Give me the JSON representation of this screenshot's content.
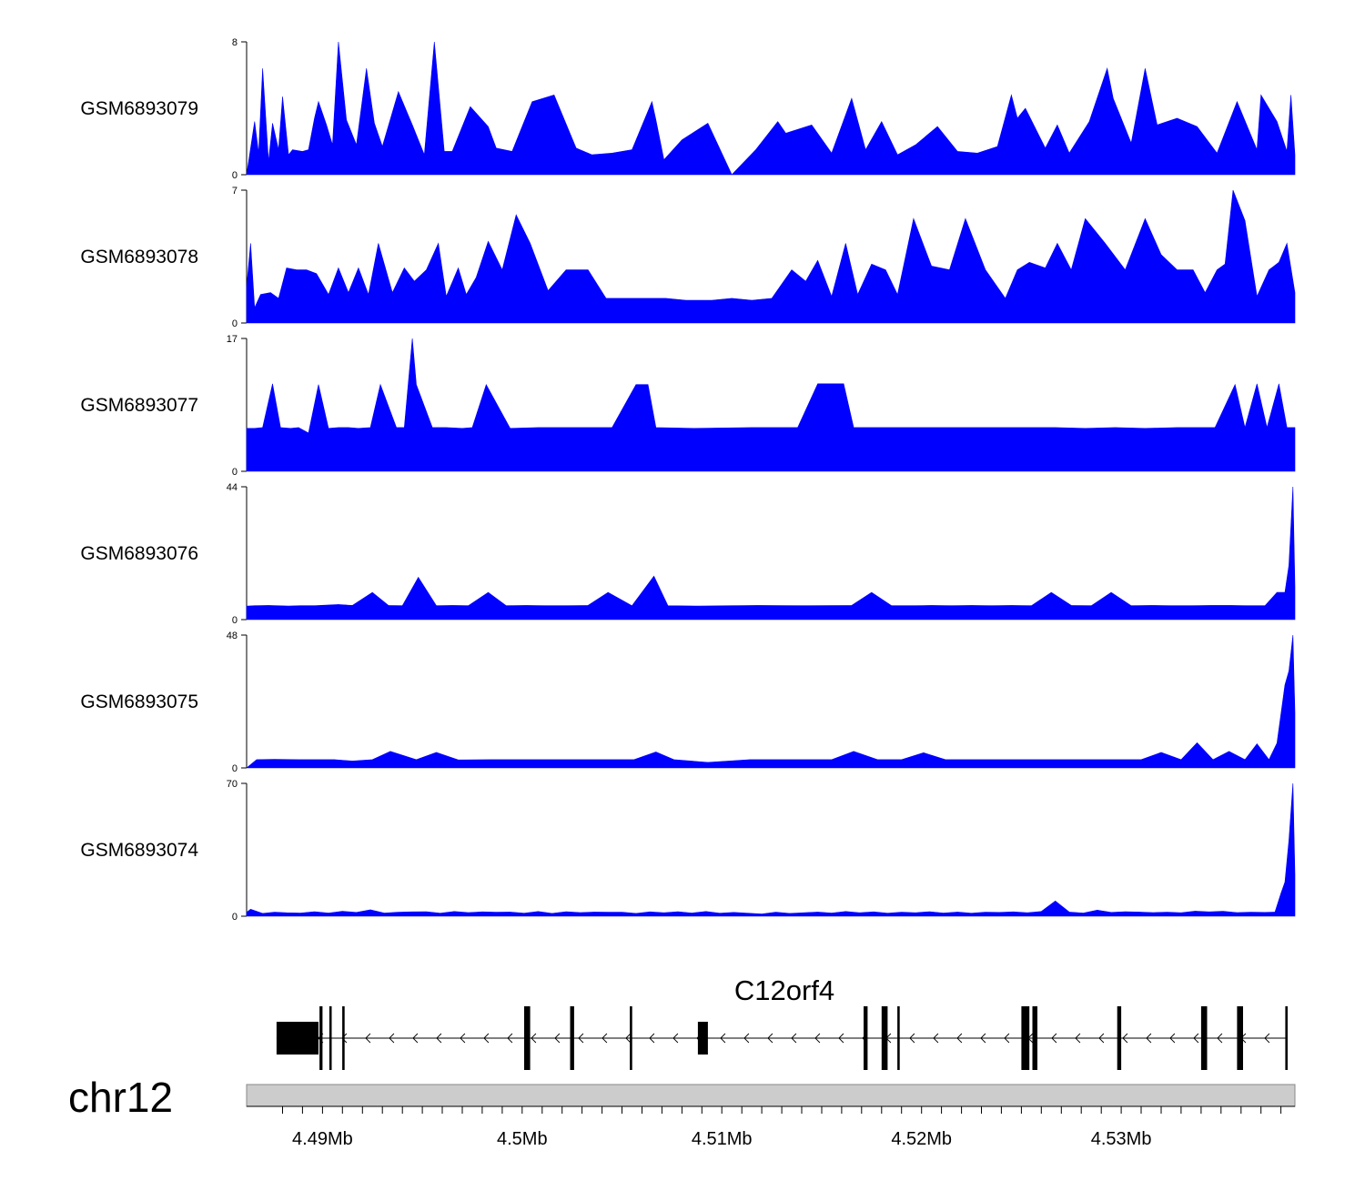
{
  "chart_data": {
    "type": "area",
    "title": "",
    "xlabel": "",
    "ylabel": "",
    "chromosome": "chr12",
    "xlim": [
      4.4862,
      4.5387
    ],
    "x_unit": "Mb",
    "x_ticks": [
      4.488,
      4.489,
      4.49,
      4.491,
      4.492,
      4.493,
      4.494,
      4.495,
      4.496,
      4.497,
      4.498,
      4.499,
      4.5,
      4.501,
      4.502,
      4.503,
      4.504,
      4.505,
      4.506,
      4.507,
      4.508,
      4.509,
      4.51,
      4.511,
      4.512,
      4.513,
      4.514,
      4.515,
      4.516,
      4.517,
      4.518,
      4.519,
      4.52,
      4.521,
      4.522,
      4.523,
      4.524,
      4.525,
      4.526,
      4.527,
      4.528,
      4.529,
      4.53,
      4.531,
      4.532,
      4.533,
      4.534,
      4.535,
      4.536,
      4.537,
      4.538
    ],
    "x_tick_labels": [
      {
        "value": 4.49,
        "label": "4.49Mb"
      },
      {
        "value": 4.5,
        "label": "4.5Mb"
      },
      {
        "value": 4.51,
        "label": "4.51Mb"
      },
      {
        "value": 4.52,
        "label": "4.52Mb"
      },
      {
        "value": 4.53,
        "label": "4.53Mb"
      }
    ],
    "fill_color": "#0000ff",
    "series": [
      {
        "name": "GSM6893079",
        "ylim": [
          0,
          8
        ],
        "y_tick_labels": [
          "0",
          "8"
        ],
        "x": [
          4.4862,
          4.4866,
          4.4868,
          4.487,
          4.4873,
          4.4875,
          4.4878,
          4.488,
          4.4883,
          4.4885,
          4.489,
          4.4893,
          4.4896,
          4.4898,
          4.4902,
          4.4905,
          4.4908,
          4.4912,
          4.4917,
          4.4922,
          4.4926,
          4.493,
          4.4938,
          4.4945,
          4.4951,
          4.4956,
          4.4961,
          4.4965,
          4.4974,
          4.4983,
          4.4987,
          4.4995,
          4.5005,
          4.5016,
          4.5027,
          4.5035,
          4.5045,
          4.5055,
          4.5065,
          4.5067,
          4.5071,
          4.508,
          4.5093,
          4.5105,
          4.5117,
          4.5128,
          4.5132,
          4.5145,
          4.5155,
          4.5165,
          4.5172,
          4.518,
          4.5188,
          4.5197,
          4.5208,
          4.5218,
          4.5228,
          4.5238,
          4.5245,
          4.5248,
          4.5252,
          4.5262,
          4.5268,
          4.5274,
          4.5284,
          4.5293,
          4.5296,
          4.5305,
          4.5312,
          4.5318,
          4.5328,
          4.5338,
          4.5348,
          4.5358,
          4.5368,
          4.537,
          4.5378,
          4.5383,
          4.5385,
          4.5387
        ],
        "values": [
          0,
          3.2,
          1.3,
          6.4,
          0.8,
          3.1,
          1.5,
          4.7,
          1.2,
          1.5,
          1.4,
          1.5,
          3.4,
          4.4,
          3.0,
          1.8,
          8.0,
          3.3,
          1.8,
          6.4,
          3.1,
          1.7,
          5.0,
          3.0,
          1.2,
          8.0,
          1.4,
          1.4,
          4.1,
          2.9,
          1.6,
          1.4,
          4.4,
          4.8,
          1.6,
          1.2,
          1.3,
          1.5,
          4.4,
          3.3,
          0.9,
          2.1,
          3.1,
          0,
          1.5,
          3.2,
          2.5,
          3.0,
          1.3,
          4.6,
          1.5,
          3.2,
          1.2,
          1.8,
          2.9,
          1.4,
          1.3,
          1.7,
          4.8,
          3.4,
          4.0,
          1.6,
          3.0,
          1.3,
          3.2,
          6.4,
          4.6,
          1.9,
          6.4,
          3.0,
          3.4,
          2.9,
          1.3,
          4.4,
          1.5,
          4.8,
          3.2,
          1.4,
          4.8,
          1.2
        ]
      },
      {
        "name": "GSM6893078",
        "ylim": [
          0,
          7
        ],
        "y_tick_labels": [
          "0",
          "7"
        ],
        "x": [
          4.4862,
          4.4864,
          4.4866,
          4.4869,
          4.4874,
          4.4878,
          4.4882,
          4.4887,
          4.4892,
          4.4897,
          4.4903,
          4.4908,
          4.4913,
          4.4918,
          4.4923,
          4.4928,
          4.4935,
          4.4941,
          4.4946,
          4.4952,
          4.4958,
          4.4962,
          4.4968,
          4.4972,
          4.4977,
          4.4983,
          4.499,
          4.4997,
          4.5004,
          4.5013,
          4.5022,
          4.5033,
          4.5042,
          4.5052,
          4.5062,
          4.5072,
          4.5082,
          4.5095,
          4.5105,
          4.5115,
          4.5125,
          4.5135,
          4.5142,
          4.5148,
          4.5155,
          4.5162,
          4.5168,
          4.5175,
          4.5182,
          4.5188,
          4.5196,
          4.5205,
          4.5214,
          4.5222,
          4.5232,
          4.5242,
          4.5248,
          4.5254,
          4.5262,
          4.5268,
          4.5275,
          4.5282,
          4.5292,
          4.5302,
          4.5312,
          4.532,
          4.5328,
          4.5336,
          4.5342,
          4.5348,
          4.5352,
          4.5356,
          4.5362,
          4.5368,
          4.5374,
          4.5379,
          4.5383,
          4.5387
        ],
        "values": [
          1.9,
          4.2,
          0.8,
          1.5,
          1.6,
          1.3,
          2.9,
          2.8,
          2.8,
          2.6,
          1.5,
          2.9,
          1.6,
          2.9,
          1.5,
          4.2,
          1.6,
          2.9,
          2.2,
          2.8,
          4.2,
          1.4,
          2.9,
          1.5,
          2.4,
          4.3,
          2.8,
          5.7,
          4.2,
          1.7,
          2.8,
          2.8,
          1.3,
          1.3,
          1.3,
          1.3,
          1.2,
          1.2,
          1.3,
          1.2,
          1.3,
          2.8,
          2.2,
          3.3,
          1.4,
          4.2,
          1.5,
          3.1,
          2.8,
          1.5,
          5.5,
          3.0,
          2.8,
          5.5,
          2.8,
          1.3,
          2.8,
          3.2,
          2.9,
          4.2,
          2.8,
          5.5,
          4.2,
          2.8,
          5.5,
          3.6,
          2.8,
          2.8,
          1.6,
          2.8,
          3.1,
          7.0,
          5.4,
          1.4,
          2.8,
          3.2,
          4.2,
          1.6
        ]
      },
      {
        "name": "GSM6893077",
        "ylim": [
          0,
          17
        ],
        "y_tick_labels": [
          "0",
          "17"
        ],
        "x": [
          4.4862,
          4.4866,
          4.487,
          4.4875,
          4.4879,
          4.4884,
          4.4888,
          4.4893,
          4.4898,
          4.4903,
          4.4908,
          4.4913,
          4.4918,
          4.4924,
          4.4929,
          4.4937,
          4.4941,
          4.4945,
          4.4947,
          4.4955,
          4.4958,
          4.4962,
          4.497,
          4.4975,
          4.4982,
          4.4994,
          4.5008,
          4.5021,
          4.5045,
          4.5057,
          4.5063,
          4.5067,
          4.5086,
          4.5115,
          4.5138,
          4.5148,
          4.5155,
          4.5161,
          4.5166,
          4.518,
          4.5187,
          4.5198,
          4.5212,
          4.5222,
          4.5237,
          4.5252,
          4.5267,
          4.5282,
          4.5297,
          4.5312,
          4.5328,
          4.5347,
          4.5357,
          4.5362,
          4.5368,
          4.5373,
          4.5379,
          4.5383,
          4.5387
        ],
        "values": [
          5.5,
          5.5,
          5.6,
          11.2,
          5.6,
          5.5,
          5.6,
          4.9,
          11.1,
          5.5,
          5.6,
          5.6,
          5.5,
          5.6,
          11.1,
          5.6,
          5.6,
          17.0,
          11.1,
          5.6,
          5.6,
          5.6,
          5.5,
          5.6,
          11.1,
          5.5,
          5.6,
          5.6,
          5.6,
          11.1,
          11.1,
          5.6,
          5.5,
          5.6,
          5.6,
          11.2,
          11.2,
          11.2,
          5.6,
          5.6,
          5.6,
          5.6,
          5.6,
          5.6,
          5.6,
          5.6,
          5.6,
          5.5,
          5.6,
          5.5,
          5.6,
          5.6,
          11.1,
          5.6,
          11.2,
          5.6,
          11.2,
          5.6,
          5.6
        ]
      },
      {
        "name": "GSM6893076",
        "ylim": [
          0,
          44
        ],
        "y_tick_labels": [
          "0",
          "44"
        ],
        "x": [
          4.4862,
          4.4866,
          4.4873,
          4.4883,
          4.4889,
          4.4896,
          4.4908,
          4.4915,
          4.4925,
          4.4933,
          4.494,
          4.4948,
          4.4957,
          4.4965,
          4.4973,
          4.4983,
          4.4992,
          4.5002,
          4.5012,
          4.5022,
          4.5033,
          4.5043,
          4.5055,
          4.5066,
          4.5073,
          4.5089,
          4.5105,
          4.5118,
          4.5139,
          4.5165,
          4.5175,
          4.5185,
          4.5195,
          4.5205,
          4.5215,
          4.5225,
          4.5235,
          4.5245,
          4.5255,
          4.5265,
          4.5275,
          4.5285,
          4.5295,
          4.5305,
          4.5315,
          4.5325,
          4.5335,
          4.5345,
          4.5355,
          4.5363,
          4.5372,
          4.5378,
          4.5382,
          4.5384,
          4.5386,
          4.5387
        ],
        "values": [
          4.5,
          4.6,
          4.7,
          4.5,
          4.6,
          4.6,
          5.0,
          4.7,
          9.0,
          4.7,
          4.6,
          14.0,
          4.6,
          4.7,
          4.6,
          9.0,
          4.6,
          4.7,
          4.6,
          4.6,
          4.7,
          9.0,
          4.6,
          14.4,
          4.6,
          4.5,
          4.6,
          4.7,
          4.6,
          4.7,
          9.0,
          4.6,
          4.6,
          4.7,
          4.6,
          4.7,
          4.6,
          4.7,
          4.6,
          9.0,
          4.7,
          4.6,
          9.0,
          4.6,
          4.7,
          4.6,
          4.6,
          4.7,
          4.7,
          4.6,
          4.6,
          9.0,
          9.0,
          18.0,
          44.0,
          11.0
        ]
      },
      {
        "name": "GSM6893075",
        "ylim": [
          0,
          48
        ],
        "y_tick_labels": [
          "0",
          "48"
        ],
        "x": [
          4.4862,
          4.4867,
          4.4876,
          4.4888,
          4.4898,
          4.4906,
          4.4915,
          4.4925,
          4.4934,
          4.4947,
          4.4957,
          4.4968,
          4.4984,
          4.5003,
          4.5022,
          4.5042,
          4.5056,
          4.5067,
          4.5076,
          4.5093,
          4.5114,
          4.5138,
          4.5155,
          4.5166,
          4.5178,
          4.519,
          4.5201,
          4.5212,
          4.5222,
          4.5233,
          4.5244,
          4.5255,
          4.5266,
          4.5277,
          4.5288,
          4.5299,
          4.531,
          4.532,
          4.533,
          4.5338,
          4.5346,
          4.5354,
          4.5362,
          4.5368,
          4.5374,
          4.5378,
          4.5382,
          4.5384,
          4.5386,
          4.5387
        ],
        "values": [
          0,
          3.0,
          3.1,
          3.0,
          3.0,
          3.0,
          2.5,
          3.0,
          6.0,
          3.0,
          5.6,
          2.9,
          3.0,
          3.0,
          3.0,
          3.0,
          3.0,
          5.8,
          3.0,
          2.0,
          3.0,
          3.0,
          3.0,
          6.0,
          3.0,
          3.0,
          5.5,
          3.0,
          3.0,
          3.0,
          3.0,
          3.0,
          3.0,
          3.0,
          3.0,
          3.0,
          3.0,
          5.6,
          3.0,
          9.1,
          3.0,
          6.0,
          3.0,
          8.7,
          3.0,
          9.0,
          30.0,
          35.0,
          48.0,
          20.0
        ]
      },
      {
        "name": "GSM6893074",
        "ylim": [
          0,
          70
        ],
        "y_tick_labels": [
          "0",
          "70"
        ],
        "x": [
          4.4862,
          4.4864,
          4.487,
          4.4876,
          4.4882,
          4.4889,
          4.4896,
          4.4903,
          4.491,
          4.4917,
          4.4924,
          4.4931,
          4.4938,
          4.4945,
          4.4952,
          4.4959,
          4.4966,
          4.4973,
          4.498,
          4.4987,
          4.4994,
          4.5001,
          4.5008,
          4.5015,
          4.5022,
          4.5029,
          4.5036,
          4.5043,
          4.505,
          4.5057,
          4.5064,
          4.5071,
          4.5078,
          4.5085,
          4.5092,
          4.5099,
          4.5106,
          4.5113,
          4.512,
          4.5127,
          4.5134,
          4.5141,
          4.5148,
          4.5155,
          4.5162,
          4.5169,
          4.5176,
          4.5183,
          4.519,
          4.5197,
          4.5204,
          4.5211,
          4.5218,
          4.5225,
          4.5232,
          4.5239,
          4.5246,
          4.5253,
          4.526,
          4.5267,
          4.5274,
          4.5281,
          4.5288,
          4.5295,
          4.5302,
          4.5309,
          4.5316,
          4.5323,
          4.533,
          4.5337,
          4.5344,
          4.5351,
          4.5358,
          4.5365,
          4.5372,
          4.5377,
          4.538,
          4.5382,
          4.5384,
          4.5386,
          4.5387
        ],
        "values": [
          2.0,
          3.7,
          1.5,
          2.1,
          1.8,
          1.7,
          2.4,
          1.7,
          2.6,
          2.0,
          3.4,
          1.7,
          2.1,
          2.3,
          2.4,
          1.6,
          2.5,
          1.9,
          2.3,
          2.1,
          2.2,
          1.6,
          2.5,
          1.5,
          2.4,
          1.9,
          2.2,
          2.1,
          2.1,
          1.5,
          2.3,
          1.8,
          2.4,
          1.7,
          2.5,
          1.6,
          2.0,
          1.6,
          1.2,
          2.1,
          1.5,
          1.8,
          2.2,
          1.7,
          2.5,
          1.8,
          2.3,
          1.6,
          2.1,
          1.8,
          2.4,
          1.7,
          2.2,
          1.6,
          2.1,
          2.0,
          2.3,
          1.8,
          2.5,
          8.0,
          2.2,
          1.7,
          3.2,
          2.0,
          2.4,
          2.2,
          1.9,
          2.1,
          1.8,
          2.7,
          2.3,
          2.6,
          1.9,
          2.1,
          2.0,
          2.2,
          12.0,
          18.0,
          40.0,
          70.0,
          22.0
        ]
      }
    ],
    "gene_track": {
      "gene_name": "C12orf4",
      "strand": "-",
      "start": 4.4877,
      "end": 4.5383,
      "exons": [
        {
          "start": 4.4877,
          "end": 4.4898,
          "thick": true
        },
        {
          "start": 4.48985,
          "end": 4.49,
          "thick": false
        },
        {
          "start": 4.49035,
          "end": 4.49045,
          "thick": false
        },
        {
          "start": 4.491,
          "end": 4.4911,
          "thick": false
        },
        {
          "start": 4.5001,
          "end": 4.5004,
          "thick": false
        },
        {
          "start": 4.5024,
          "end": 4.5026,
          "thick": false
        },
        {
          "start": 4.5054,
          "end": 4.5055,
          "thick": false
        },
        {
          "start": 4.5088,
          "end": 4.5093,
          "thick": true
        },
        {
          "start": 4.5171,
          "end": 4.5173,
          "thick": false
        },
        {
          "start": 4.518,
          "end": 4.5183,
          "thick": false
        },
        {
          "start": 4.5188,
          "end": 4.5189,
          "thick": false
        },
        {
          "start": 4.525,
          "end": 4.5254,
          "thick": false
        },
        {
          "start": 4.52555,
          "end": 4.5258,
          "thick": false
        },
        {
          "start": 4.5298,
          "end": 4.53,
          "thick": false
        },
        {
          "start": 4.534,
          "end": 4.5343,
          "thick": false
        },
        {
          "start": 4.5358,
          "end": 4.5361,
          "thick": false
        },
        {
          "start": 4.53825,
          "end": 4.5383,
          "thick": false
        }
      ]
    }
  }
}
